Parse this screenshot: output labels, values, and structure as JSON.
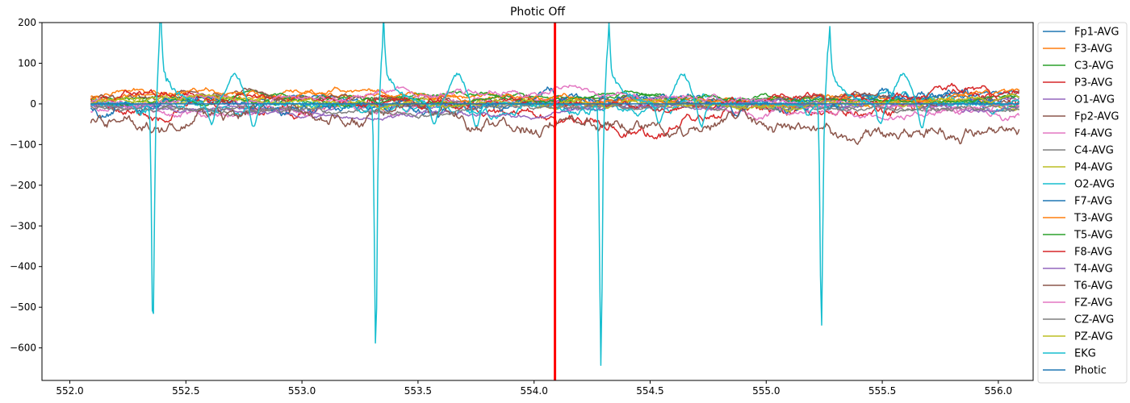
{
  "chart_data": {
    "type": "line",
    "title": "Photic Off",
    "xlabel": "",
    "ylabel": "",
    "xlim": [
      551.88,
      556.15
    ],
    "ylim": [
      -680,
      200
    ],
    "x_ticks": [
      552.0,
      552.5,
      553.0,
      553.5,
      554.0,
      554.5,
      555.0,
      555.5,
      556.0
    ],
    "x_tick_labels": [
      "552.0",
      "552.5",
      "553.0",
      "553.5",
      "554.0",
      "554.5",
      "555.0",
      "555.5",
      "556.0"
    ],
    "y_ticks": [
      200,
      100,
      0,
      -100,
      -200,
      -300,
      -400,
      -500,
      -600
    ],
    "y_tick_labels": [
      "200",
      "100",
      "0",
      "−100",
      "−200",
      "−300",
      "−400",
      "−500",
      "−600"
    ],
    "grid": false,
    "legend_position": "outside-right",
    "marker": {
      "x": 554.09,
      "color": "#ff0000"
    },
    "series": [
      {
        "name": "Fp1-AVG",
        "color": "#1f77b4",
        "baseline": 12,
        "amplitude": 7
      },
      {
        "name": "F3-AVG",
        "color": "#ff7f0e",
        "baseline": 18,
        "amplitude": 7
      },
      {
        "name": "C3-AVG",
        "color": "#2ca02c",
        "baseline": 8,
        "amplitude": 6
      },
      {
        "name": "P3-AVG",
        "color": "#d62728",
        "baseline": -12,
        "amplitude": 14
      },
      {
        "name": "O1-AVG",
        "color": "#9467bd",
        "baseline": -3,
        "amplitude": 6
      },
      {
        "name": "Fp2-AVG",
        "color": "#8c564b",
        "baseline": 15,
        "amplitude": 8
      },
      {
        "name": "F4-AVG",
        "color": "#e377c2",
        "baseline": -15,
        "amplitude": 10
      },
      {
        "name": "C4-AVG",
        "color": "#7f7f7f",
        "baseline": 0,
        "amplitude": 6
      },
      {
        "name": "P4-AVG",
        "color": "#bcbd22",
        "baseline": 5,
        "amplitude": 7
      },
      {
        "name": "O2-AVG",
        "color": "#17becf",
        "baseline": -5,
        "amplitude": 12
      },
      {
        "name": "F7-AVG",
        "color": "#1f77b4",
        "baseline": -20,
        "amplitude": 14
      },
      {
        "name": "T3-AVG",
        "color": "#ff7f0e",
        "baseline": 10,
        "amplitude": 7
      },
      {
        "name": "T5-AVG",
        "color": "#2ca02c",
        "baseline": 0,
        "amplitude": 6
      },
      {
        "name": "F8-AVG",
        "color": "#d62728",
        "baseline": 10,
        "amplitude": 10
      },
      {
        "name": "T4-AVG",
        "color": "#9467bd",
        "baseline": -8,
        "amplitude": 6
      },
      {
        "name": "T6-AVG",
        "color": "#8c564b",
        "baseline": -45,
        "amplitude": 18
      },
      {
        "name": "FZ-AVG",
        "color": "#e377c2",
        "baseline": 5,
        "amplitude": 9
      },
      {
        "name": "CZ-AVG",
        "color": "#7f7f7f",
        "baseline": -3,
        "amplitude": 6
      },
      {
        "name": "PZ-AVG",
        "color": "#bcbd22",
        "baseline": 3,
        "amplitude": 7
      },
      {
        "name": "EKG",
        "color": "#17becf",
        "baseline": 0,
        "amplitude": 10,
        "r_peaks": [
          552.37,
          553.33,
          554.3,
          555.25
        ],
        "r_minima": [
          -565,
          -607,
          -640,
          -550
        ],
        "r_maxima": [
          163,
          148,
          144,
          148
        ]
      },
      {
        "name": "Photic",
        "color": "#1f77b4",
        "baseline": 0,
        "amplitude": 1
      }
    ]
  }
}
